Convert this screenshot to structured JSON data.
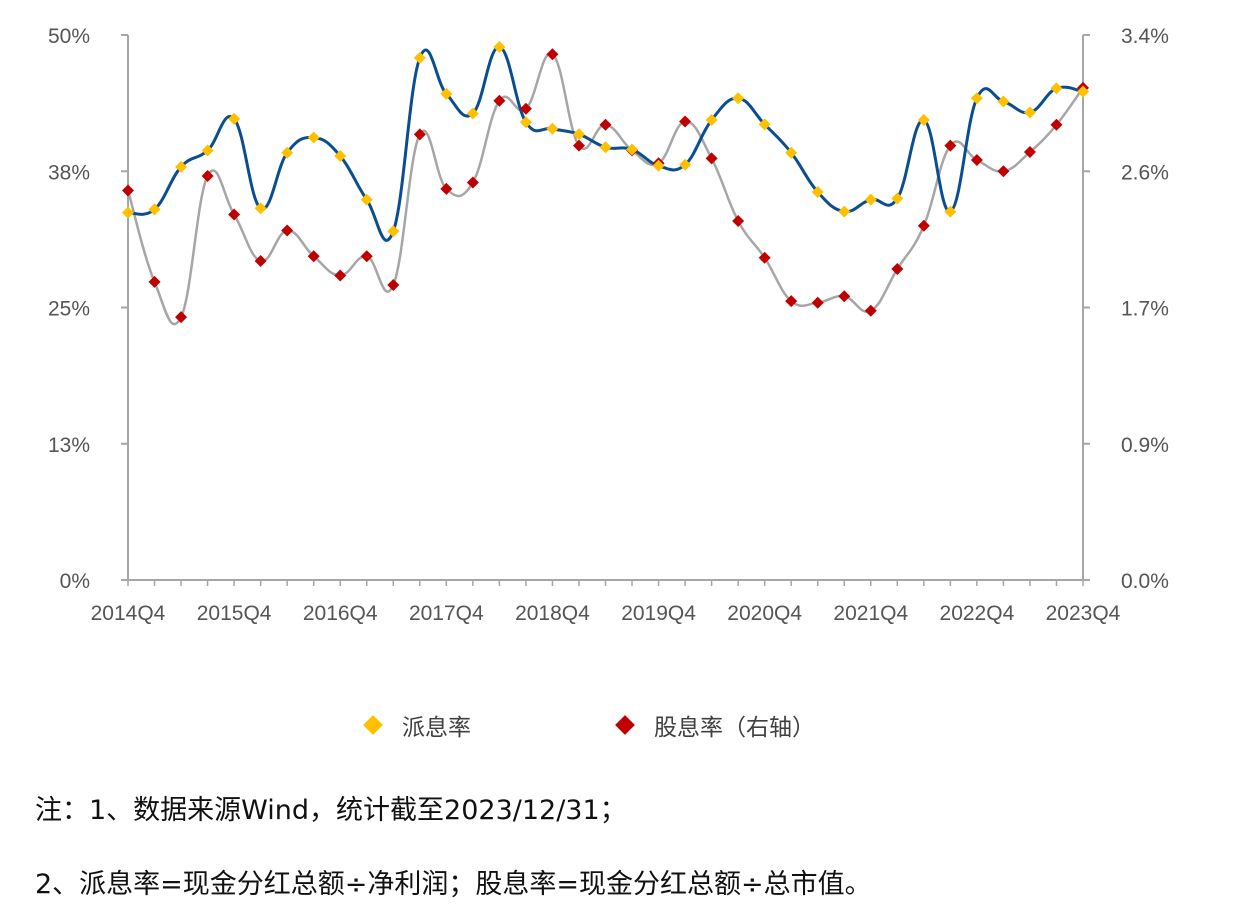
{
  "chart_data": {
    "type": "line",
    "categories": [
      "2014Q4",
      "2015Q1",
      "2015Q2",
      "2015Q3",
      "2015Q4",
      "2016Q1",
      "2016Q2",
      "2016Q3",
      "2016Q4",
      "2017Q1",
      "2017Q2",
      "2017Q3",
      "2017Q4",
      "2018Q1",
      "2018Q2",
      "2018Q3",
      "2018Q4",
      "2019Q1",
      "2019Q2",
      "2019Q3",
      "2019Q4",
      "2020Q1",
      "2020Q2",
      "2020Q3",
      "2020Q4",
      "2021Q1",
      "2021Q2",
      "2021Q3",
      "2021Q4",
      "2022Q1",
      "2022Q2",
      "2022Q3",
      "2022Q4",
      "2023Q1",
      "2023Q2",
      "2023Q3",
      "2023Q4"
    ],
    "x_tick_labels": [
      "2014Q4",
      "2015Q4",
      "2016Q4",
      "2017Q4",
      "2018Q4",
      "2019Q4",
      "2020Q4",
      "2021Q4",
      "2022Q4",
      "2023Q4"
    ],
    "y_left_ticks": [
      "0%",
      "13%",
      "25%",
      "38%",
      "50%"
    ],
    "y_right_ticks": [
      "0.0%",
      "0.9%",
      "1.7%",
      "2.6%",
      "3.4%"
    ],
    "ylim_left": [
      0,
      50
    ],
    "ylim_right": [
      0,
      3.4
    ],
    "grid": false,
    "legend_position": "bottom",
    "series": [
      {
        "name": "派息率",
        "axis": "left",
        "color": "#FFC000",
        "line_color": "#0B4E8F",
        "values": [
          33.7,
          34.0,
          37.9,
          39.4,
          42.3,
          34.1,
          39.2,
          40.6,
          38.9,
          34.9,
          32.0,
          47.9,
          44.6,
          42.8,
          48.9,
          42.0,
          41.4,
          40.9,
          39.7,
          39.5,
          38.0,
          38.1,
          42.2,
          44.2,
          41.8,
          39.2,
          35.6,
          33.8,
          34.9,
          35.0,
          42.2,
          33.8,
          44.2,
          43.9,
          42.9,
          45.1,
          44.8
        ],
        "smooth": true
      },
      {
        "name": "股息率（右轴）",
        "axis": "right",
        "color": "#C00000",
        "line_color": "#A6A6A6",
        "values": [
          2.43,
          1.86,
          1.64,
          2.52,
          2.28,
          1.99,
          2.18,
          2.02,
          1.9,
          2.02,
          1.84,
          2.78,
          2.44,
          2.48,
          2.99,
          2.94,
          3.28,
          2.71,
          2.84,
          2.68,
          2.6,
          2.86,
          2.63,
          2.24,
          2.01,
          1.74,
          1.73,
          1.77,
          1.68,
          1.94,
          2.21,
          2.71,
          2.62,
          2.55,
          2.67,
          2.84,
          3.07
        ],
        "smooth": true
      }
    ]
  },
  "legend": {
    "item1": "派息率",
    "item2": "股息率（右轴）"
  },
  "notes": {
    "line1": "注：1、数据来源Wind，统计截至2023/12/31；",
    "line2": "2、派息率=现金分红总额÷净利润；股息率=现金分红总额÷总市值。"
  }
}
